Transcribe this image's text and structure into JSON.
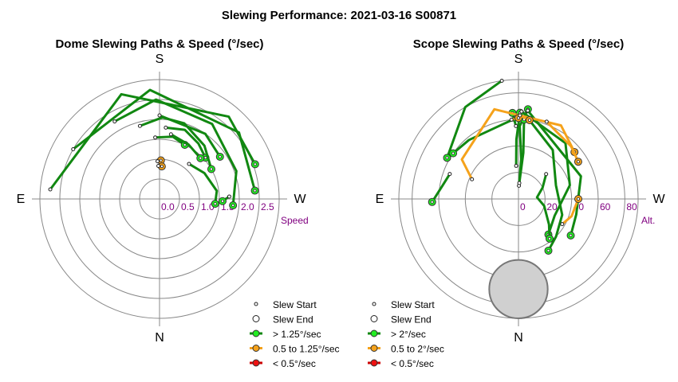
{
  "title": "Slewing Performance: 2021-03-16 S00871",
  "chart_data": [
    {
      "type": "polar",
      "title": "Dome Slewing Paths & Speed (°/sec)",
      "compass": {
        "top": "S",
        "bottom": "N",
        "left": "E",
        "right": "W"
      },
      "radial_axis_label": "Speed",
      "radial_ticks": [
        "2.5",
        "2.0",
        "1.5",
        "1.0",
        "0.5",
        "0.0"
      ],
      "radial_tick_values": [
        2.5,
        2.0,
        1.5,
        1.0,
        0.5,
        0.0
      ],
      "radial_range": [
        3.0,
        0.0
      ],
      "angle_convention": "azimuth degrees; 0=N at bottom, 90=E at left, 180=S at top, 270=W at right",
      "paths": [
        {
          "speed_class": "fast",
          "points": [
            [
              176,
              1.55
            ],
            [
              192,
              1.6
            ],
            [
              205,
              1.5
            ]
          ]
        },
        {
          "speed_class": "fast",
          "points": [
            [
              185,
              1.8
            ],
            [
              200,
              1.85
            ],
            [
              215,
              1.7
            ],
            [
              228,
              1.55
            ]
          ]
        },
        {
          "speed_class": "fast",
          "points": [
            [
              165,
              1.9
            ],
            [
              182,
              2.05
            ],
            [
              198,
              2.0
            ],
            [
              220,
              1.75
            ],
            [
              240,
              1.5
            ]
          ]
        },
        {
          "speed_class": "fast",
          "points": [
            [
              150,
              2.25
            ],
            [
              178,
              2.5
            ],
            [
              215,
              2.3
            ],
            [
              250,
              2.05
            ],
            [
              275,
              1.85
            ]
          ]
        },
        {
          "speed_class": "fast",
          "points": [
            [
              120,
              2.5
            ],
            [
              175,
              2.75
            ],
            [
              230,
              2.6
            ],
            [
              265,
              2.4
            ]
          ]
        },
        {
          "speed_class": "fast",
          "points": [
            [
              95,
              2.75
            ],
            [
              160,
              2.8
            ],
            [
              220,
              2.7
            ],
            [
              250,
              2.55
            ]
          ]
        },
        {
          "speed_class": "fast",
          "points": [
            [
              220,
              1.15
            ],
            [
              240,
              1.3
            ],
            [
              262,
              1.45
            ],
            [
              275,
              1.4
            ]
          ]
        },
        {
          "speed_class": "fast",
          "points": [
            [
              268,
              1.75
            ],
            [
              272,
              1.58
            ]
          ]
        },
        {
          "speed_class": "fast",
          "points": [
            [
              190,
              1.65
            ],
            [
              208,
              1.55
            ],
            [
              225,
              1.45
            ]
          ]
        },
        {
          "speed_class": "fast",
          "points": [
            [
              180,
              2.1
            ],
            [
              215,
              2.0
            ],
            [
              235,
              1.85
            ]
          ]
        },
        {
          "speed_class": "medium",
          "points": [
            [
              177,
              0.95
            ],
            [
              182,
              0.97
            ]
          ]
        },
        {
          "speed_class": "medium",
          "points": [
            [
              178,
              0.83
            ],
            [
              184,
              0.82
            ]
          ]
        }
      ],
      "legend": {
        "position": "bottom-right",
        "entries": [
          "Slew Start",
          "Slew End",
          "> 1.25°/sec",
          "0.5 to 1.25°/sec",
          "< 0.5°/sec"
        ]
      }
    },
    {
      "type": "polar",
      "title": "Scope Slewing Paths & Speed (°/sec)",
      "compass": {
        "top": "S",
        "bottom": "N",
        "left": "E",
        "right": "W"
      },
      "radial_axis_label": "Alt.",
      "radial_ticks": [
        "80",
        "60",
        "40",
        "20",
        "0"
      ],
      "radial_tick_values": [
        80,
        60,
        40,
        20,
        0
      ],
      "radial_range": [
        90,
        0
      ],
      "angle_convention": "azimuth degrees; 0=N at bottom, 90=E at left, 180=S at top, 270=W at right",
      "excluded_zone": {
        "center_az": 0,
        "center_alt": 68,
        "radius_deg": 22
      },
      "paths": [
        {
          "speed_class": "fast",
          "points": [
            [
              182,
              10
            ],
            [
              184,
              30
            ],
            [
              181,
              55
            ],
            [
              186,
              68
            ]
          ]
        },
        {
          "speed_class": "fast",
          "points": [
            [
              176,
              25
            ],
            [
              178,
              45
            ],
            [
              181,
              65
            ]
          ]
        },
        {
          "speed_class": "fast",
          "points": [
            [
              183,
              12
            ],
            [
              186,
              35
            ],
            [
              184,
              60
            ]
          ]
        },
        {
          "speed_class": "fast",
          "points": [
            [
              186,
              62
            ],
            [
              215,
              45
            ],
            [
              250,
              30
            ],
            [
              290,
              35
            ],
            [
              315,
              40
            ],
            [
              330,
              45
            ]
          ]
        },
        {
          "speed_class": "fast",
          "points": [
            [
              182,
              66
            ],
            [
              220,
              55
            ],
            [
              255,
              40
            ],
            [
              295,
              30
            ],
            [
              320,
              35
            ]
          ]
        },
        {
          "speed_class": "fast",
          "points": [
            [
              228,
              28
            ],
            [
              245,
              20
            ],
            [
              265,
              14
            ],
            [
              285,
              20
            ],
            [
              310,
              30
            ],
            [
              322,
              38
            ]
          ]
        },
        {
          "speed_class": "fast",
          "points": [
            [
              186,
              67
            ],
            [
              250,
              50
            ],
            [
              285,
              45
            ],
            [
              305,
              48
            ]
          ]
        },
        {
          "speed_class": "fast",
          "points": [
            [
              176,
              60
            ],
            [
              140,
              58
            ],
            [
              125,
              60
            ]
          ]
        },
        {
          "speed_class": "fast",
          "points": [
            [
              172,
              90
            ],
            [
              150,
              80
            ],
            [
              120,
              62
            ]
          ]
        },
        {
          "speed_class": "fast",
          "points": [
            [
              110,
              55
            ],
            [
              100,
              58
            ],
            [
              88,
              65
            ]
          ]
        },
        {
          "speed_class": "fast",
          "points": [
            [
              178,
              55
            ],
            [
              176,
              65
            ]
          ]
        },
        {
          "speed_class": "medium",
          "points": [
            [
              113,
              38
            ],
            [
              125,
              52
            ],
            [
              165,
              70
            ],
            [
              210,
              64
            ],
            [
              230,
              55
            ]
          ]
        },
        {
          "speed_class": "medium",
          "points": [
            [
              200,
              62
            ],
            [
              225,
              56
            ],
            [
              238,
              53
            ]
          ]
        },
        {
          "speed_class": "medium",
          "points": [
            [
              300,
              38
            ],
            [
              288,
              42
            ],
            [
              270,
              45
            ]
          ]
        },
        {
          "speed_class": "medium",
          "points": [
            [
              175,
              60
            ],
            [
              180,
              61
            ]
          ]
        },
        {
          "speed_class": "medium",
          "points": [
            [
              181,
              63
            ],
            [
              188,
              60
            ]
          ]
        }
      ],
      "legend": {
        "position": "bottom-right",
        "entries": [
          "Slew Start",
          "Slew End",
          "> 2°/sec",
          "0.5 to 2°/sec",
          "< 0.5°/sec"
        ]
      }
    }
  ],
  "colors": {
    "fast": "#118811",
    "fast_marker": "#22ee22",
    "medium": "#f5a21b",
    "medium_marker": "#f5a21b",
    "slow": "#cc0000",
    "slow_marker": "#ee1111",
    "tick_label": "#800080",
    "grid": "#888888",
    "zone_fill": "#d0d0d0",
    "zone_stroke": "#777777"
  }
}
